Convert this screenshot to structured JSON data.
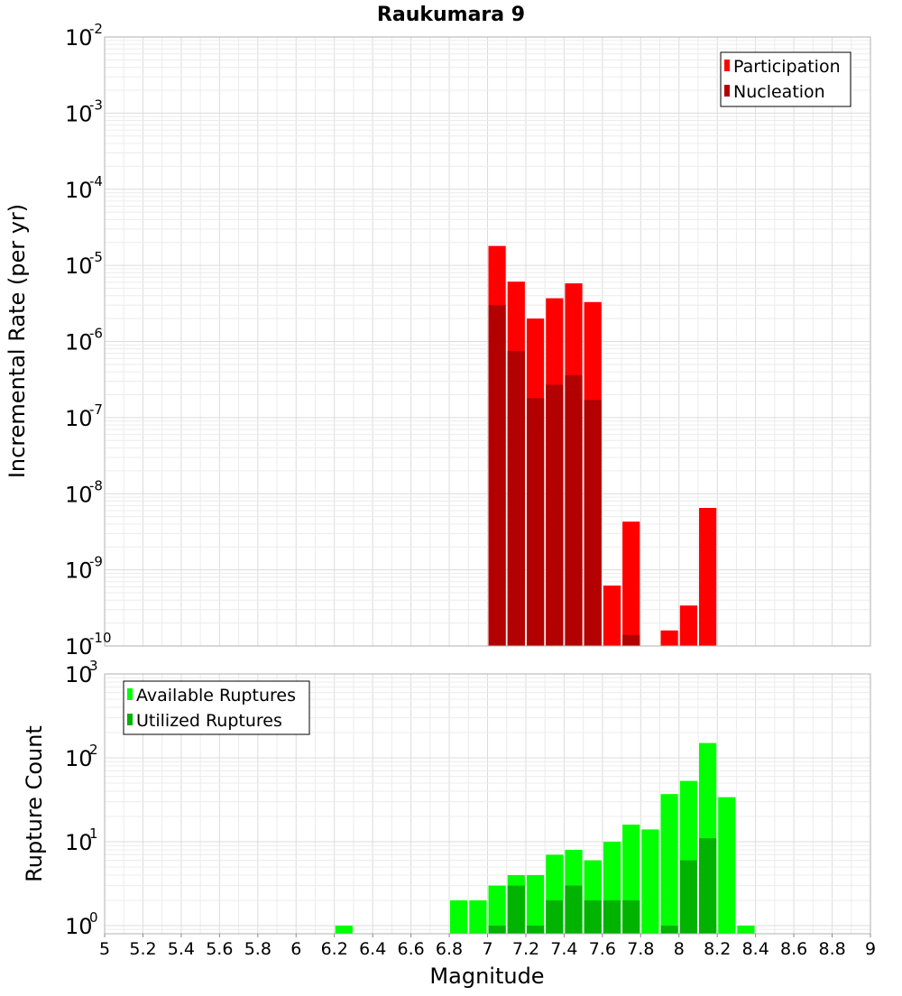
{
  "chart_data": [
    {
      "type": "bar",
      "title": "Raukumara 9",
      "xlabel": "",
      "ylabel": "Incremental Rate (per yr)",
      "yscale": "log",
      "ylim": [
        1e-10,
        0.01
      ],
      "xlim": [
        5,
        9
      ],
      "y_tick_exponents": [
        "-2",
        "-3",
        "-4",
        "-5",
        "-6",
        "-7",
        "-8",
        "-9",
        "-10"
      ],
      "y_tick_base": "10",
      "legend": {
        "position": "top-right",
        "entries": [
          {
            "label": "Participation",
            "color": "#ff0000"
          },
          {
            "label": "Nucleation",
            "color": "#b30000"
          }
        ]
      },
      "series": [
        {
          "name": "Participation",
          "color": "#ff0000",
          "x": [
            7.05,
            7.15,
            7.25,
            7.35,
            7.45,
            7.55,
            7.65,
            7.75,
            7.95,
            8.05,
            8.15
          ],
          "values": [
            1.8e-05,
            6.1e-06,
            2e-06,
            3.7e-06,
            5.8e-06,
            3.3e-06,
            6.2e-10,
            4.3e-09,
            1.6e-10,
            3.4e-10,
            6.5e-09
          ]
        },
        {
          "name": "Nucleation",
          "color": "#b30000",
          "x": [
            7.05,
            7.15,
            7.25,
            7.35,
            7.45,
            7.55,
            7.75
          ],
          "values": [
            3e-06,
            7.5e-07,
            1.8e-07,
            2.7e-07,
            3.6e-07,
            1.7e-07,
            1.4e-10
          ]
        }
      ]
    },
    {
      "type": "bar",
      "xlabel": "Magnitude",
      "ylabel": "Rupture Count",
      "yscale": "log",
      "ylim": [
        0.8,
        1000
      ],
      "xlim": [
        5,
        9
      ],
      "x_ticks": [
        "5",
        "5.2",
        "5.4",
        "5.6",
        "5.8",
        "6",
        "6.2",
        "6.4",
        "6.6",
        "6.8",
        "7",
        "7.2",
        "7.4",
        "7.6",
        "7.8",
        "8",
        "8.2",
        "8.4",
        "8.6",
        "8.8",
        "9"
      ],
      "y_tick_exponents": [
        "3",
        "2",
        "1",
        "0"
      ],
      "y_tick_base": "10",
      "legend": {
        "position": "top-left",
        "entries": [
          {
            "label": "Available Ruptures",
            "color": "#00ff00"
          },
          {
            "label": "Utilized Ruptures",
            "color": "#00b300"
          }
        ]
      },
      "series": [
        {
          "name": "Available Ruptures",
          "color": "#00ff00",
          "x": [
            6.25,
            6.85,
            6.95,
            7.05,
            7.15,
            7.25,
            7.35,
            7.45,
            7.55,
            7.65,
            7.75,
            7.85,
            7.95,
            8.05,
            8.15,
            8.25,
            8.35
          ],
          "values": [
            1,
            2,
            2,
            3,
            4,
            4,
            7,
            8,
            6,
            10,
            16,
            14,
            37,
            53,
            150,
            34,
            1
          ]
        },
        {
          "name": "Utilized Ruptures",
          "color": "#00b300",
          "x": [
            7.05,
            7.15,
            7.25,
            7.35,
            7.45,
            7.55,
            7.65,
            7.75,
            7.95,
            8.05,
            8.15
          ],
          "values": [
            1,
            3,
            1,
            2,
            3,
            2,
            2,
            2,
            1,
            6,
            11
          ]
        }
      ]
    }
  ]
}
